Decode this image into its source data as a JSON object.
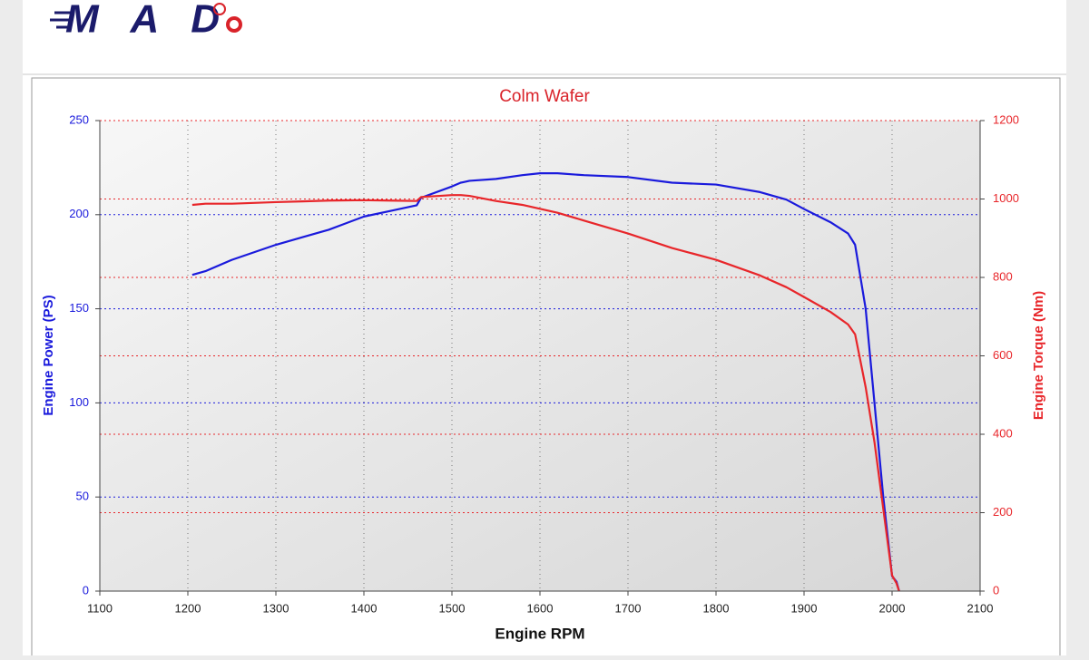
{
  "logo": "MAD",
  "chart_data": {
    "type": "line",
    "title": "Colm Wafer",
    "x_label": "Engine RPM",
    "y_label": "Engine Power (PS)",
    "y2_label": "Engine Torque (Nm)",
    "x": [
      1205,
      1220,
      1250,
      1300,
      1330,
      1360,
      1400,
      1430,
      1460,
      1465,
      1500,
      1510,
      1520,
      1550,
      1580,
      1600,
      1620,
      1650,
      1700,
      1750,
      1800,
      1850,
      1880,
      1900,
      1930,
      1950,
      1958,
      1970,
      1980,
      1990,
      2000,
      2005,
      2008
    ],
    "series": [
      {
        "name": "Engine Power (PS)",
        "color": "#1a1adc",
        "values": [
          168,
          170,
          176,
          184,
          188,
          192,
          199,
          202,
          205,
          209,
          215,
          217,
          218,
          219,
          221,
          222,
          222,
          221,
          220,
          217,
          216,
          212,
          208,
          203,
          196,
          190,
          184,
          150,
          100,
          50,
          8,
          5,
          0
        ]
      },
      {
        "name": "Engine Torque (Nm)",
        "color": "#e8262a",
        "axis": "y2",
        "values": [
          985,
          988,
          988,
          992,
          994,
          996,
          997,
          996,
          995,
          1005,
          1010,
          1010,
          1008,
          995,
          985,
          975,
          965,
          945,
          912,
          875,
          845,
          805,
          775,
          750,
          712,
          680,
          655,
          520,
          380,
          210,
          40,
          20,
          0
        ]
      }
    ],
    "xlim": [
      1100,
      2100
    ],
    "xticks": [
      1100,
      1200,
      1300,
      1400,
      1500,
      1600,
      1700,
      1800,
      1900,
      2000,
      2100
    ],
    "ylim": [
      0,
      250
    ],
    "yticks": [
      0,
      50,
      100,
      150,
      200,
      250
    ],
    "y2lim": [
      0,
      1200
    ],
    "y2ticks": [
      0,
      200,
      400,
      600,
      800,
      1000,
      1200
    ],
    "grid": true
  }
}
